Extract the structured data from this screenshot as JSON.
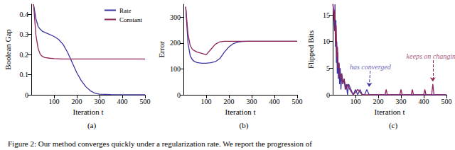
{
  "caption": "Figure 2: Our method converges quickly under a regularization rate. We report the progression of",
  "chart_data": [
    {
      "type": "line",
      "title": "(a)",
      "x_label": "Iteration t",
      "y_label": "Boolean Gap",
      "xlim": [
        0,
        500
      ],
      "xticks": [
        100,
        200,
        300,
        400,
        500
      ],
      "ylim": [
        0,
        0.45
      ],
      "yticks": [
        0,
        0.1,
        0.2,
        0.3,
        0.4
      ],
      "grid": false,
      "legend": "upper right",
      "series": [
        {
          "name": "Rate",
          "color": "#3b34a0",
          "x": [
            10,
            20,
            30,
            40,
            50,
            60,
            80,
            100,
            120,
            140,
            160,
            180,
            200,
            220,
            240,
            260,
            280,
            300,
            350,
            400,
            450,
            500
          ],
          "values": [
            0.45,
            0.38,
            0.34,
            0.325,
            0.315,
            0.31,
            0.3,
            0.29,
            0.275,
            0.25,
            0.21,
            0.16,
            0.11,
            0.07,
            0.04,
            0.02,
            0.008,
            0.003,
            0.001,
            0,
            0,
            0
          ]
        },
        {
          "name": "Constant",
          "color": "#8e2458",
          "x": [
            10,
            20,
            30,
            40,
            50,
            60,
            80,
            100,
            120,
            140,
            160,
            180,
            200,
            220,
            240,
            260,
            280,
            300,
            350,
            400,
            450,
            500
          ],
          "values": [
            0.45,
            0.3,
            0.23,
            0.2,
            0.19,
            0.185,
            0.182,
            0.18,
            0.179,
            0.178,
            0.178,
            0.178,
            0.178,
            0.178,
            0.178,
            0.178,
            0.178,
            0.178,
            0.178,
            0.178,
            0.178,
            0.178
          ]
        }
      ]
    },
    {
      "type": "line",
      "title": "(b)",
      "x_label": "Iteration t",
      "y_label": "Error",
      "xlim": [
        0,
        500
      ],
      "xticks": [
        100,
        200,
        300,
        400,
        500
      ],
      "ylim": [
        0,
        350
      ],
      "yticks": [
        0,
        100,
        200,
        300
      ],
      "grid": false,
      "series": [
        {
          "name": "Rate",
          "color": "#3b34a0",
          "x": [
            10,
            20,
            30,
            40,
            50,
            60,
            80,
            100,
            120,
            140,
            160,
            180,
            200,
            220,
            240,
            260,
            280,
            300,
            350,
            400,
            450,
            500
          ],
          "values": [
            340,
            200,
            150,
            135,
            128,
            125,
            122,
            122,
            124,
            128,
            140,
            165,
            185,
            198,
            204,
            206,
            207,
            207,
            207,
            207,
            207,
            207
          ]
        },
        {
          "name": "Constant",
          "color": "#8e2458",
          "x": [
            10,
            20,
            30,
            40,
            50,
            60,
            80,
            100,
            120,
            140,
            160,
            180,
            200,
            220,
            240,
            260,
            280,
            300,
            350,
            400,
            450,
            500
          ],
          "values": [
            340,
            235,
            190,
            175,
            170,
            165,
            160,
            155,
            175,
            195,
            205,
            207,
            207,
            207,
            207,
            207,
            207,
            207,
            207,
            207,
            207,
            207
          ]
        }
      ]
    },
    {
      "type": "line",
      "title": "(c)",
      "x_label": "Iteration t",
      "y_label": "Flipped Bits",
      "xlim": [
        0,
        500
      ],
      "xticks": [
        100,
        200,
        300,
        400,
        500
      ],
      "ylim": [
        0,
        17
      ],
      "yticks": [
        0,
        5,
        10,
        15
      ],
      "grid": false,
      "series": [
        {
          "name": "Rate",
          "color": "#3b34a0",
          "x": [
            1,
            5,
            8,
            10,
            12,
            14,
            16,
            18,
            20,
            22,
            25,
            28,
            30,
            33,
            36,
            40,
            45,
            50,
            55,
            60,
            65,
            70,
            80,
            90,
            100,
            110,
            120,
            130,
            140,
            150,
            160,
            170,
            200,
            500
          ],
          "values": [
            17,
            15,
            12,
            17,
            9,
            14,
            6,
            10,
            4,
            8,
            3,
            6,
            2,
            5,
            1,
            4,
            2,
            3,
            1,
            2,
            0,
            2,
            1,
            0,
            1,
            0,
            1,
            0,
            0,
            1,
            0,
            0,
            0,
            0
          ]
        },
        {
          "name": "Constant",
          "color": "#8e2458",
          "x": [
            1,
            6,
            9,
            12,
            15,
            18,
            21,
            24,
            27,
            32,
            38,
            44,
            50,
            58,
            66,
            75,
            90,
            110,
            130,
            150,
            230,
            235,
            240,
            295,
            300,
            305,
            345,
            350,
            355,
            400,
            405,
            410,
            435,
            440,
            445,
            500
          ],
          "values": [
            17,
            14,
            16,
            10,
            13,
            7,
            9,
            5,
            6,
            3,
            4,
            2,
            3,
            1,
            2,
            1,
            0,
            1,
            0,
            0,
            0,
            1,
            0,
            0,
            1,
            0,
            0,
            1,
            0,
            0,
            1,
            0,
            0,
            2,
            0,
            0
          ]
        }
      ],
      "annotations": [
        {
          "text": "has converged",
          "color": "#3b34a0",
          "x": 165,
          "y": 4.5,
          "arrow_x": 160,
          "arrow_y": 1.5
        },
        {
          "text": "keeps on changing",
          "color": "#8e2458",
          "x": 440,
          "y": 6.5,
          "arrow_x": 440,
          "arrow_y": 2.5
        }
      ]
    }
  ]
}
